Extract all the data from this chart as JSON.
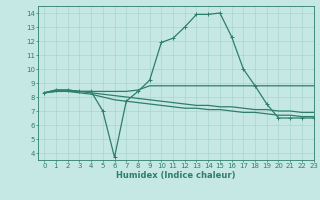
{
  "xlabel": "Humidex (Indice chaleur)",
  "xlim": [
    -0.5,
    23
  ],
  "ylim": [
    3.5,
    14.5
  ],
  "xticks": [
    0,
    1,
    2,
    3,
    4,
    5,
    6,
    7,
    8,
    9,
    10,
    11,
    12,
    13,
    14,
    15,
    16,
    17,
    18,
    19,
    20,
    21,
    22,
    23
  ],
  "yticks": [
    4,
    5,
    6,
    7,
    8,
    9,
    10,
    11,
    12,
    13,
    14
  ],
  "bg_color": "#c5e8e5",
  "grid_color": "#aad4d0",
  "line_color": "#2e7d6e",
  "lines": [
    [
      8.3,
      8.5,
      8.5,
      8.4,
      8.4,
      7.0,
      3.7,
      7.7,
      8.4,
      9.2,
      11.9,
      12.2,
      13.0,
      13.9,
      13.9,
      14.0,
      12.3,
      10.0,
      8.8,
      7.5,
      6.5,
      6.5,
      6.5,
      6.5
    ],
    [
      8.3,
      8.5,
      8.5,
      8.4,
      8.4,
      8.4,
      8.4,
      8.4,
      8.5,
      8.8,
      8.8,
      8.8,
      8.8,
      8.8,
      8.8,
      8.8,
      8.8,
      8.8,
      8.8,
      8.8,
      8.8,
      8.8,
      8.8,
      8.8
    ],
    [
      8.3,
      8.4,
      8.4,
      8.4,
      8.3,
      8.2,
      8.1,
      8.0,
      7.9,
      7.8,
      7.7,
      7.6,
      7.5,
      7.4,
      7.4,
      7.3,
      7.3,
      7.2,
      7.1,
      7.1,
      7.0,
      7.0,
      6.9,
      6.9
    ],
    [
      8.3,
      8.4,
      8.4,
      8.3,
      8.2,
      8.0,
      7.8,
      7.7,
      7.6,
      7.5,
      7.4,
      7.3,
      7.2,
      7.2,
      7.1,
      7.1,
      7.0,
      6.9,
      6.9,
      6.8,
      6.7,
      6.7,
      6.6,
      6.6
    ]
  ],
  "marker_indices": [
    [
      0,
      1,
      2,
      3,
      4,
      5,
      6,
      7,
      8,
      9,
      10,
      11,
      12,
      13,
      14,
      15,
      16,
      17,
      18,
      19,
      20,
      21,
      22,
      23
    ],
    [],
    [],
    []
  ]
}
